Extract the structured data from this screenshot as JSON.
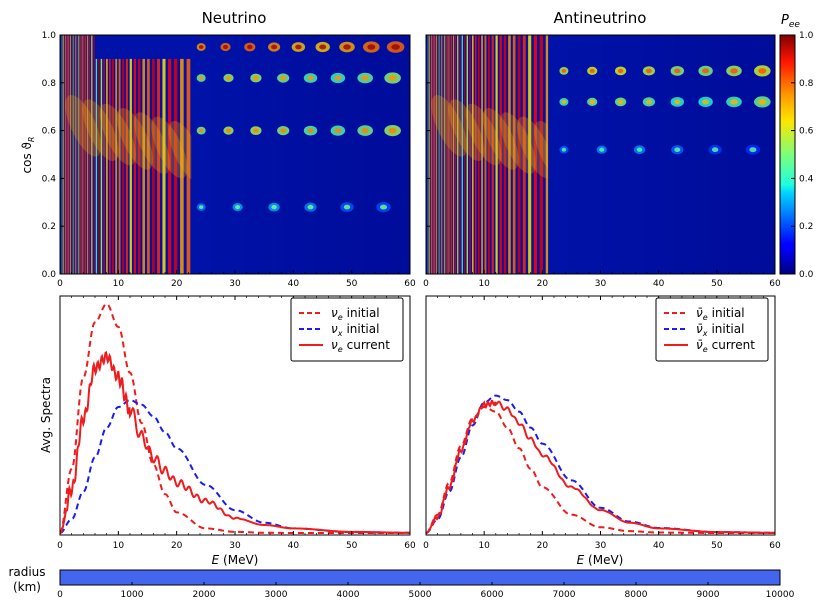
{
  "panels": {
    "neutrino_title": "Neutrino",
    "antineutrino_title": "Antineutrino"
  },
  "colorbar": {
    "label": "P_ee",
    "label_main": "P",
    "label_sub": "ee",
    "ticks": [
      "0.0",
      "0.2",
      "0.4",
      "0.6",
      "0.8",
      "1.0"
    ],
    "range": [
      0,
      1
    ]
  },
  "heatmap_axes": {
    "ylabel_prefix": "cos ϑ",
    "ylabel_sub": "R",
    "yticks": [
      "0.0",
      "0.2",
      "0.4",
      "0.6",
      "0.8",
      "1.0"
    ],
    "xticks": [
      "0",
      "10",
      "20",
      "30",
      "40",
      "50",
      "60"
    ],
    "xlim": [
      0,
      60
    ],
    "ylim": [
      0,
      1
    ]
  },
  "spectra_axes": {
    "ylabel": "Avg. Spectra",
    "xlabel_var": "E",
    "xlabel_unit": " (MeV)",
    "xticks": [
      "0",
      "10",
      "20",
      "30",
      "40",
      "50",
      "60"
    ],
    "xlim": [
      0,
      60
    ]
  },
  "legend_nu": [
    {
      "sym": "ν",
      "sub": "e",
      "text": "initial",
      "color": "#ee1c1c",
      "dash": true
    },
    {
      "sym": "ν",
      "sub": "x",
      "text": "initial",
      "color": "#1c1cee",
      "dash": true
    },
    {
      "sym": "ν",
      "sub": "e",
      "text": "current",
      "color": "#ee1c1c",
      "dash": false
    }
  ],
  "legend_anu": [
    {
      "sym": "ν̄",
      "sub": "e",
      "text": "initial",
      "color": "#ee1c1c",
      "dash": true
    },
    {
      "sym": "ν̄",
      "sub": "x",
      "text": "initial",
      "color": "#1c1cee",
      "dash": true
    },
    {
      "sym": "ν̄",
      "sub": "e",
      "text": "current",
      "color": "#ee1c1c",
      "dash": false
    }
  ],
  "radius_bar": {
    "label_line1": "radius",
    "label_line2": "(km)",
    "ticks": [
      "0",
      "1000",
      "2000",
      "3000",
      "4000",
      "5000",
      "6000",
      "7000",
      "8000",
      "9000",
      "10000"
    ],
    "range": [
      0,
      10000
    ],
    "progress": 1.0,
    "color": "#4466ee"
  },
  "chart_data": [
    {
      "type": "heatmap",
      "title": "Neutrino",
      "x_quantity": "E",
      "y_quantity": "cos θ_R",
      "xlim": [
        0,
        60
      ],
      "ylim": [
        0,
        1
      ],
      "value_quantity": "P_ee",
      "value_range": [
        0,
        1
      ],
      "description_values": {
        "oscillation_cutoff_E": 22.5
      }
    },
    {
      "type": "heatmap",
      "title": "Antineutrino",
      "xlim": [
        0,
        60
      ],
      "ylim": [
        0,
        1
      ],
      "value_range": [
        0,
        1
      ],
      "description_values": {
        "oscillation_cutoff_E": 21
      }
    },
    {
      "type": "line",
      "xlabel": "E (MeV)",
      "ylabel": "Avg. Spectra",
      "xlim": [
        0,
        60
      ],
      "ylim": [
        0,
        1
      ],
      "x": [
        0,
        2,
        4,
        6,
        8,
        10,
        12,
        14,
        16,
        18,
        20,
        25,
        30,
        35,
        40,
        50,
        60
      ],
      "series": [
        {
          "name": "ν_e initial",
          "style": "dashed",
          "color": "#ee1c1c",
          "values": [
            0.0,
            0.28,
            0.68,
            0.92,
            1.0,
            0.9,
            0.7,
            0.48,
            0.3,
            0.17,
            0.09,
            0.02,
            0.005,
            0.001,
            0,
            0,
            0
          ]
        },
        {
          "name": "ν_x initial",
          "style": "dashed",
          "color": "#1c1cee",
          "values": [
            0.0,
            0.06,
            0.18,
            0.33,
            0.46,
            0.55,
            0.58,
            0.56,
            0.51,
            0.44,
            0.37,
            0.21,
            0.1,
            0.045,
            0.02,
            0.004,
            0.001
          ]
        },
        {
          "name": "ν_e current",
          "style": "solid",
          "color": "#ee1c1c",
          "values": [
            0.0,
            0.19,
            0.5,
            0.72,
            0.77,
            0.68,
            0.54,
            0.42,
            0.33,
            0.27,
            0.22,
            0.14,
            0.065,
            0.035,
            0.02,
            0.005,
            0.001
          ]
        }
      ]
    },
    {
      "type": "line",
      "xlabel": "E (MeV)",
      "xlim": [
        0,
        60
      ],
      "ylim": [
        0,
        1
      ],
      "x": [
        0,
        2,
        4,
        6,
        8,
        10,
        12,
        14,
        16,
        18,
        20,
        25,
        30,
        35,
        40,
        50,
        60
      ],
      "series": [
        {
          "name": "ν̄_e initial",
          "style": "dashed",
          "color": "#ee1c1c",
          "values": [
            0.0,
            0.08,
            0.22,
            0.38,
            0.5,
            0.55,
            0.53,
            0.46,
            0.37,
            0.28,
            0.2,
            0.08,
            0.025,
            0.008,
            0.002,
            0,
            0
          ]
        },
        {
          "name": "ν̄_x initial",
          "style": "dashed",
          "color": "#1c1cee",
          "values": [
            0.0,
            0.06,
            0.18,
            0.33,
            0.47,
            0.57,
            0.6,
            0.58,
            0.53,
            0.46,
            0.39,
            0.23,
            0.11,
            0.05,
            0.022,
            0.004,
            0.001
          ]
        },
        {
          "name": "ν̄_e current",
          "style": "solid",
          "color": "#ee1c1c",
          "values": [
            0.0,
            0.07,
            0.2,
            0.36,
            0.49,
            0.56,
            0.57,
            0.54,
            0.48,
            0.41,
            0.34,
            0.2,
            0.1,
            0.045,
            0.02,
            0.004,
            0.001
          ]
        }
      ]
    }
  ]
}
